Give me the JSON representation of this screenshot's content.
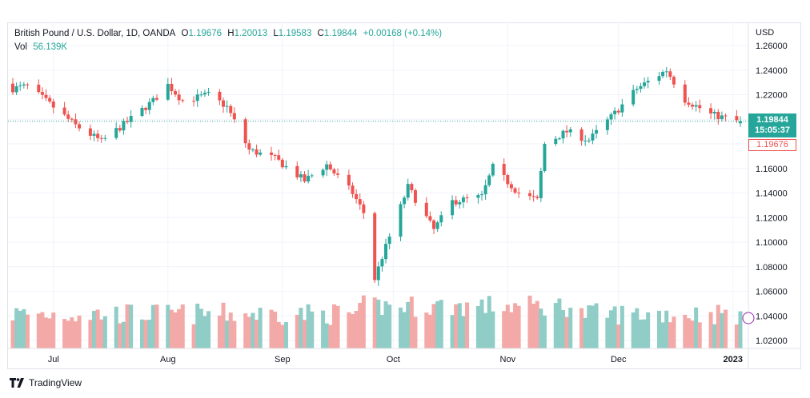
{
  "legend": {
    "title": "British Pound / U.S. Dollar, 1D, OANDA",
    "o_label": "O",
    "o_value": "1.19676",
    "h_label": "H",
    "h_value": "1.20013",
    "l_label": "L",
    "l_value": "1.19583",
    "c_label": "C",
    "c_value": "1.19844",
    "change": "+0.00168 (+0.14%)",
    "vol_label": "Vol",
    "vol_value": "56.139K"
  },
  "price_tags": {
    "last_price": "1.19844",
    "countdown": "15:05:37",
    "open_price": "1.19676"
  },
  "brand": {
    "name": "TradingView"
  },
  "colors": {
    "up": "#26a69a",
    "down": "#ef5350",
    "up_vol": "#8fcdc6",
    "down_vol": "#f3a9a7",
    "grid": "#f0f3fa"
  },
  "chart_data": {
    "type": "candlestick",
    "title": "British Pound / U.S. Dollar, 1D, OANDA",
    "currency": "USD",
    "ylim": [
      1.01,
      1.27
    ],
    "y_ticks": [
      "1.26000",
      "1.24000",
      "1.22000",
      "1.20000",
      "1.18000",
      "1.16000",
      "1.14000",
      "1.12000",
      "1.10000",
      "1.08000",
      "1.06000",
      "1.04000",
      "1.02000"
    ],
    "x_ticks": [
      "Jul",
      "Aug",
      "Sep",
      "Oct",
      "Nov",
      "Dec",
      "2023"
    ],
    "last_close": 1.19844,
    "grid": true,
    "price_trend": [
      {
        "date": "2022-06-20",
        "close": 1.225
      },
      {
        "date": "2022-06-24",
        "close": 1.227
      },
      {
        "date": "2022-07-01",
        "close": 1.21
      },
      {
        "date": "2022-07-07",
        "close": 1.195
      },
      {
        "date": "2022-07-14",
        "close": 1.182
      },
      {
        "date": "2022-07-21",
        "close": 1.198
      },
      {
        "date": "2022-07-28",
        "close": 1.215
      },
      {
        "date": "2022-08-01",
        "close": 1.228
      },
      {
        "date": "2022-08-05",
        "close": 1.215
      },
      {
        "date": "2022-08-12",
        "close": 1.22
      },
      {
        "date": "2022-08-17",
        "close": 1.21
      },
      {
        "date": "2022-08-23",
        "close": 1.175
      },
      {
        "date": "2022-08-30",
        "close": 1.168
      },
      {
        "date": "2022-09-07",
        "close": 1.15
      },
      {
        "date": "2022-09-13",
        "close": 1.163
      },
      {
        "date": "2022-09-20",
        "close": 1.14
      },
      {
        "date": "2022-09-23",
        "close": 1.124
      },
      {
        "date": "2022-09-26",
        "close": 1.07
      },
      {
        "date": "2022-09-28",
        "close": 1.088
      },
      {
        "date": "2022-10-05",
        "close": 1.145
      },
      {
        "date": "2022-10-12",
        "close": 1.11
      },
      {
        "date": "2022-10-17",
        "close": 1.133
      },
      {
        "date": "2022-10-25",
        "close": 1.137
      },
      {
        "date": "2022-10-28",
        "close": 1.161
      },
      {
        "date": "2022-11-04",
        "close": 1.14
      },
      {
        "date": "2022-11-09",
        "close": 1.134
      },
      {
        "date": "2022-11-11",
        "close": 1.18
      },
      {
        "date": "2022-11-17",
        "close": 1.19
      },
      {
        "date": "2022-11-23",
        "close": 1.183
      },
      {
        "date": "2022-11-30",
        "close": 1.205
      },
      {
        "date": "2022-12-06",
        "close": 1.225
      },
      {
        "date": "2022-12-14",
        "close": 1.24
      },
      {
        "date": "2022-12-19",
        "close": 1.216
      },
      {
        "date": "2022-12-26",
        "close": 1.204
      },
      {
        "date": "2023-01-03",
        "close": 1.198
      }
    ],
    "volume_range": [
      30,
      78
    ]
  }
}
